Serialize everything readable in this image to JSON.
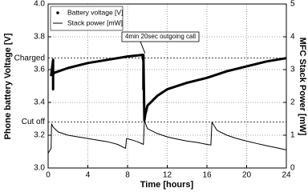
{
  "chart_data": {
    "type": "line",
    "x_label": "Time [hours]",
    "y_label": "Phone battery Voltage [V]",
    "y2_label": "MFC Stack Power [mW]",
    "xlim": [
      0,
      24
    ],
    "xticks": [
      0,
      4,
      8,
      12,
      16,
      20,
      24
    ],
    "ylim": [
      3.0,
      4.0
    ],
    "yticks": [
      {
        "value": 3.0,
        "label": "3.0"
      },
      {
        "value": 3.2,
        "label": "3.2"
      },
      {
        "value": 3.4,
        "label": "3.4"
      },
      {
        "value": 3.6,
        "label": "3.6"
      },
      {
        "value": 3.8,
        "label": "3.8"
      },
      {
        "value": 4.0,
        "label": "4.0"
      }
    ],
    "y2lim": [
      0,
      5
    ],
    "y2ticks": [
      0,
      1,
      2,
      3,
      4,
      5
    ],
    "grid": true,
    "legend": "upper left",
    "reference_lines": [
      {
        "label": "Charged",
        "value": 3.67
      },
      {
        "label": "Cut off",
        "value": 3.28
      }
    ],
    "annotation": {
      "text": "4min 20sec outgoing call",
      "x": 9.6,
      "y": 3.69
    },
    "series": [
      {
        "name": "Battery voltage [V]",
        "color": "#000000",
        "x": [
          0.3,
          0.5,
          0.5,
          0.5,
          0.6,
          2,
          4,
          6,
          8,
          9.5,
          9.6,
          9.6,
          9.6,
          9.7,
          9.8,
          10,
          11,
          12,
          14,
          16,
          17,
          18,
          20,
          22,
          24
        ],
        "values": [
          3.56,
          3.66,
          3.48,
          3.57,
          3.58,
          3.61,
          3.64,
          3.66,
          3.68,
          3.69,
          3.65,
          3.48,
          3.69,
          3.29,
          3.33,
          3.38,
          3.44,
          3.48,
          3.52,
          3.55,
          3.57,
          3.59,
          3.62,
          3.65,
          3.67
        ]
      },
      {
        "name": "Stack power [mW]",
        "color": "#000000",
        "axis": "y2",
        "x": [
          0,
          0.3,
          0.35,
          0.5,
          1,
          2,
          3,
          4,
          5,
          6,
          7,
          7.8,
          7.9,
          8.5,
          9,
          9.6,
          9.7,
          10,
          11,
          12,
          13,
          14,
          15,
          16,
          16.4,
          16.5,
          17,
          18,
          19,
          20,
          21,
          22,
          23,
          24
        ],
        "values": [
          0.45,
          0.6,
          1.35,
          1.25,
          1.1,
          1.0,
          0.95,
          0.9,
          0.85,
          0.8,
          0.72,
          0.6,
          0.9,
          0.85,
          0.8,
          0.72,
          1.45,
          1.2,
          1.05,
          0.95,
          0.88,
          0.82,
          0.78,
          0.72,
          0.7,
          1.4,
          1.15,
          1.0,
          0.9,
          0.82,
          0.75,
          0.68,
          0.62,
          0.55
        ]
      }
    ]
  }
}
